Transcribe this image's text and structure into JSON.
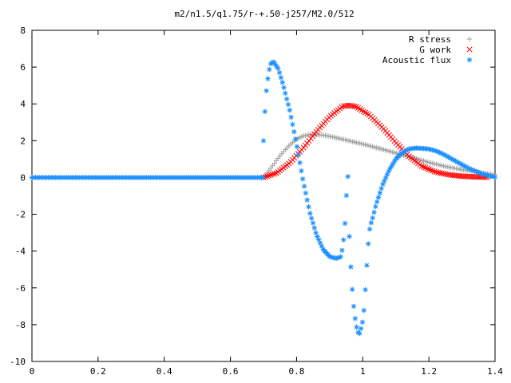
{
  "chart_data": {
    "type": "scatter",
    "title": "m2/n1.5/q1.75/r-+.50-j257/M2.0/512",
    "xlabel": "",
    "ylabel": "",
    "xlim": [
      0,
      1.4
    ],
    "ylim": [
      -10,
      8
    ],
    "x_ticks": [
      "0",
      "0.2",
      "0.4",
      "0.6",
      "0.8",
      "1",
      "1.2",
      "1.4"
    ],
    "y_ticks": [
      "-10",
      "-8",
      "-6",
      "-4",
      "-2",
      "0",
      "2",
      "4",
      "6",
      "8"
    ],
    "grid": false,
    "legend": "top-right",
    "series": [
      {
        "name": "R stress",
        "marker": "plus",
        "color": "#a0a0a0",
        "x": [
          0,
          0.7,
          0.72,
          0.74,
          0.76,
          0.78,
          0.8,
          0.82,
          0.84,
          0.86,
          0.88,
          0.9,
          0.92,
          0.95,
          1.0,
          1.05,
          1.1,
          1.15,
          1.2,
          1.25,
          1.3,
          1.35,
          1.4
        ],
        "y": [
          0,
          0,
          0.45,
          0.95,
          1.4,
          1.78,
          2.08,
          2.26,
          2.33,
          2.34,
          2.3,
          2.24,
          2.16,
          2.03,
          1.82,
          1.58,
          1.33,
          1.08,
          0.82,
          0.6,
          0.42,
          0.28,
          0.15
        ]
      },
      {
        "name": "G work",
        "marker": "cross",
        "color": "#ff0000",
        "x": [
          0.7,
          0.74,
          0.78,
          0.82,
          0.86,
          0.9,
          0.94,
          0.96,
          0.98,
          1.02,
          1.06,
          1.1,
          1.14,
          1.18,
          1.22,
          1.26,
          1.3,
          1.34,
          1.38
        ],
        "y": [
          0,
          0.25,
          0.8,
          1.6,
          2.5,
          3.3,
          3.88,
          3.92,
          3.85,
          3.4,
          2.7,
          1.9,
          1.15,
          0.6,
          0.3,
          0.15,
          0.07,
          0.03,
          0.01
        ]
      },
      {
        "name": "Acoustic flux",
        "marker": "star",
        "color": "#1e90ff",
        "x": [
          0.7,
          0.705,
          0.71,
          0.72,
          0.73,
          0.745,
          0.76,
          0.78,
          0.8,
          0.82,
          0.84,
          0.86,
          0.88,
          0.9,
          0.92,
          0.935,
          0.945,
          0.95,
          0.955,
          0.96,
          0.965,
          0.97,
          0.975,
          0.98,
          0.985,
          0.99,
          0.995,
          1.0,
          1.005,
          1.01,
          1.015,
          1.02,
          1.025,
          1.03,
          1.04,
          1.06,
          1.08,
          1.1,
          1.12,
          1.14,
          1.16,
          1.18,
          1.2,
          1.22,
          1.24,
          1.26,
          1.28,
          1.3,
          1.32,
          1.34,
          1.36,
          1.38,
          1.4
        ],
        "y": [
          2.0,
          3.8,
          5.0,
          6.15,
          6.3,
          5.9,
          5.0,
          3.6,
          1.8,
          -0.2,
          -1.9,
          -3.1,
          -3.9,
          -4.3,
          -4.4,
          -4.3,
          -3.0,
          -1.2,
          0.2,
          -3.5,
          -5.2,
          -6.5,
          -7.4,
          -8.0,
          -8.4,
          -8.5,
          -8.2,
          -7.8,
          -7.0,
          -5.5,
          -4.0,
          -2.9,
          -2.5,
          -2.2,
          -1.5,
          -0.4,
          0.4,
          1.0,
          1.35,
          1.55,
          1.6,
          1.58,
          1.55,
          1.45,
          1.3,
          1.1,
          0.9,
          0.7,
          0.5,
          0.35,
          0.2,
          0.1,
          0.02
        ]
      }
    ]
  }
}
